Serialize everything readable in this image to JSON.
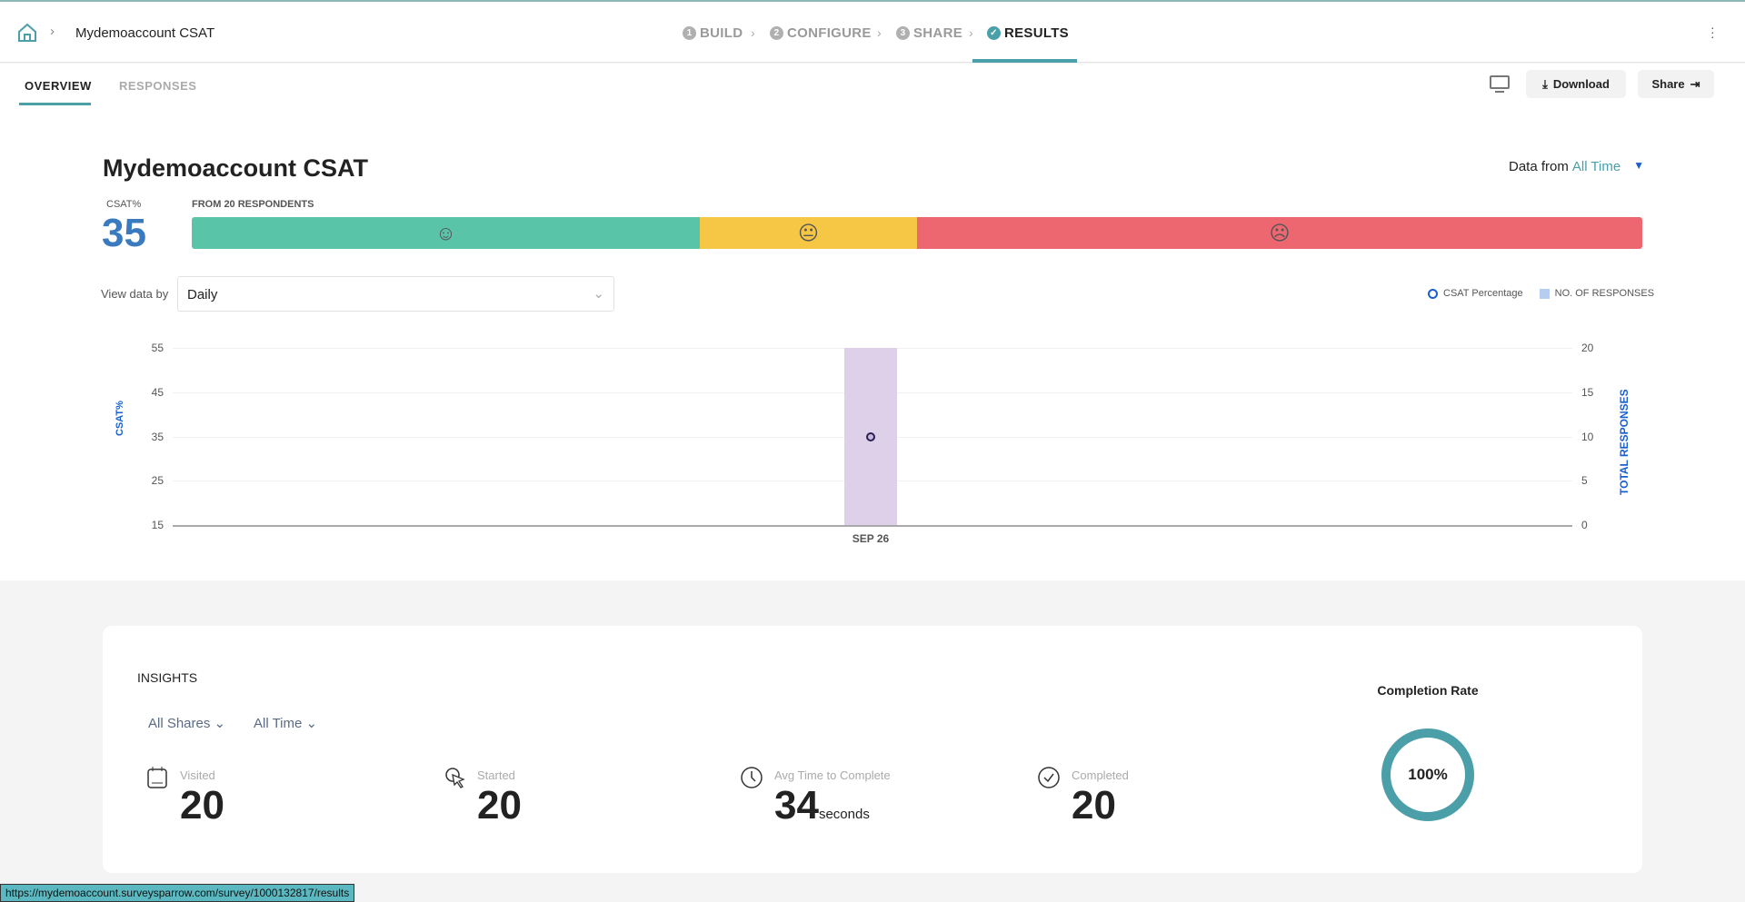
{
  "header": {
    "title": "Mydemoaccount CSAT",
    "steps": [
      {
        "num": "1",
        "label": "BUILD"
      },
      {
        "num": "2",
        "label": "CONFIGURE"
      },
      {
        "num": "3",
        "label": "SHARE"
      },
      {
        "num": "✓",
        "label": "RESULTS"
      }
    ]
  },
  "tabs": {
    "overview": "OVERVIEW",
    "responses": "RESPONSES",
    "download": "Download",
    "share": "Share"
  },
  "main": {
    "title": "Mydemoaccount CSAT",
    "data_from_label": "Data from",
    "data_from_value": "All Time",
    "csat_label": "CSAT%",
    "csat_value": "35",
    "respondents": "FROM 20 RESPONDENTS",
    "view_by_label": "View data by",
    "view_by_value": "Daily",
    "legend": [
      "CSAT Percentage",
      "NO. OF RESPONSES"
    ]
  },
  "colors": {
    "accent": "#4a9fa8",
    "green": "#59c4a8",
    "yellow": "#f6c745",
    "red": "#ec6770",
    "bar": "#ddd0e8"
  },
  "chart_data": {
    "type": "bar",
    "categories": [
      "SEP 26"
    ],
    "series": [
      {
        "name": "NO. OF RESPONSES",
        "values": [
          20
        ],
        "axis": "right"
      },
      {
        "name": "CSAT Percentage",
        "values": [
          35
        ],
        "axis": "left",
        "type": "scatter"
      }
    ],
    "ylabel": "CSAT%",
    "y2label": "TOTAL RESPONSES",
    "ylim": [
      15,
      55
    ],
    "y2lim": [
      0,
      20
    ],
    "yticks": [
      "55",
      "45",
      "35",
      "25",
      "15"
    ],
    "y2ticks": [
      "20",
      "15",
      "10",
      "5",
      "0"
    ],
    "sentiment_split": [
      35,
      15,
      50
    ]
  },
  "insights": {
    "title": "INSIGHTS",
    "filter_shares": "All Shares",
    "filter_time": "All Time",
    "stats": [
      {
        "label": "Visited",
        "value": "20"
      },
      {
        "label": "Started",
        "value": "20"
      },
      {
        "label": "Avg Time to Complete",
        "value": "34",
        "unit": "seconds"
      },
      {
        "label": "Completed",
        "value": "20"
      }
    ],
    "completion_label": "Completion Rate",
    "completion_value": "100%",
    "completion_fraction": 1.0
  },
  "status_url": "https://mydemoaccount.surveysparrow.com/survey/1000132817/results"
}
